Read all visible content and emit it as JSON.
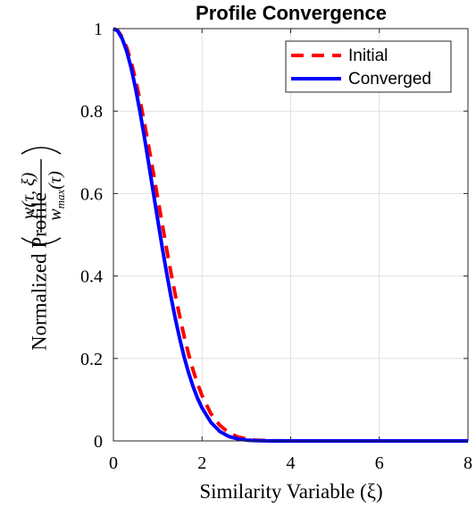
{
  "chart_data": {
    "type": "line",
    "title": "Profile Convergence",
    "xlabel": "Similarity Variable (ξ)",
    "ylabel": "Normalized Profile",
    "ylabel_fraction": {
      "numerator": "w(τ, ξ)",
      "denominator": "w_max(τ)",
      "denominator_base": "w",
      "denominator_sub": "max",
      "denominator_arg": "(τ)"
    },
    "xlim": [
      0,
      8
    ],
    "ylim": [
      0,
      1
    ],
    "xticks": [
      "0",
      "2",
      "4",
      "6",
      "8"
    ],
    "yticks": [
      "0",
      "0.2",
      "0.4",
      "0.6",
      "0.8",
      "1"
    ],
    "grid": true,
    "legend_position": "top-right",
    "x": [
      0,
      0.1,
      0.2,
      0.3,
      0.4,
      0.5,
      0.6,
      0.7,
      0.8,
      0.9,
      1.0,
      1.1,
      1.2,
      1.3,
      1.4,
      1.5,
      1.6,
      1.7,
      1.8,
      1.9,
      2.0,
      2.2,
      2.4,
      2.6,
      2.8,
      3.0,
      3.2,
      3.4,
      3.6,
      3.8,
      4.0,
      5.0,
      6.0,
      7.0,
      8.0
    ],
    "series": [
      {
        "name": "Initial",
        "color": "#ff0000",
        "style": "dashed",
        "values": [
          1.0,
          0.995,
          0.979,
          0.954,
          0.919,
          0.876,
          0.826,
          0.771,
          0.712,
          0.651,
          0.589,
          0.527,
          0.466,
          0.407,
          0.352,
          0.3,
          0.252,
          0.209,
          0.171,
          0.138,
          0.11,
          0.066,
          0.038,
          0.02,
          0.01,
          0.005,
          0.002,
          0.001,
          0.0004,
          0.0002,
          0.0001,
          0.0,
          0.0,
          0.0,
          0.0
        ]
      },
      {
        "name": "Converged",
        "color": "#0000ff",
        "style": "solid",
        "values": [
          1.0,
          0.994,
          0.975,
          0.945,
          0.905,
          0.855,
          0.798,
          0.736,
          0.67,
          0.603,
          0.536,
          0.47,
          0.408,
          0.349,
          0.295,
          0.246,
          0.202,
          0.164,
          0.131,
          0.103,
          0.08,
          0.045,
          0.023,
          0.011,
          0.005,
          0.002,
          0.0008,
          0.0003,
          0.0001,
          0.0,
          0.0,
          0.0,
          0.0,
          0.0,
          0.0
        ]
      }
    ]
  }
}
